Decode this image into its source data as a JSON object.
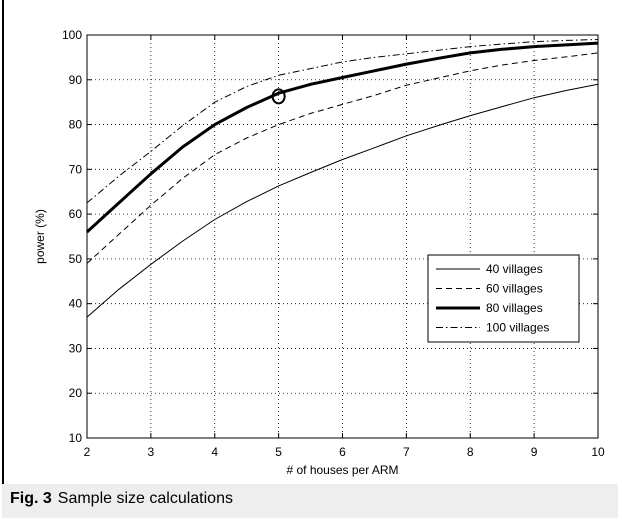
{
  "caption": {
    "label": "Fig. 3",
    "text": "Sample size calculations"
  },
  "chart_data": {
    "type": "line",
    "xlabel": "# of houses per ARM",
    "ylabel": "power (%)",
    "xlim": [
      2,
      10
    ],
    "ylim": [
      10,
      100
    ],
    "xticks": [
      2,
      3,
      4,
      5,
      6,
      7,
      8,
      9,
      10
    ],
    "yticks": [
      10,
      20,
      30,
      40,
      50,
      60,
      70,
      80,
      90,
      100
    ],
    "grid": true,
    "legend_position": "right",
    "x": [
      2,
      2.5,
      3,
      3.5,
      4,
      4.5,
      5,
      5.5,
      6,
      6.5,
      7,
      7.5,
      8,
      8.5,
      9,
      9.5,
      10
    ],
    "series": [
      {
        "name": "40 villages",
        "style": "solid-thin",
        "color": "#000000",
        "values": [
          37,
          43.2,
          48.8,
          54,
          58.8,
          62.8,
          66.3,
          69.3,
          72.2,
          74.8,
          77.5,
          79.8,
          82,
          84,
          86,
          87.6,
          89
        ]
      },
      {
        "name": "60 villages",
        "style": "dashed",
        "color": "#000000",
        "values": [
          49,
          55.5,
          62,
          68,
          73.3,
          77,
          80,
          82.5,
          84.5,
          86.5,
          88.8,
          90.4,
          92,
          93.3,
          94.3,
          95.1,
          96
        ]
      },
      {
        "name": "80 villages",
        "style": "solid-thick",
        "color": "#000000",
        "values": [
          56,
          62.5,
          69,
          75,
          80,
          83.8,
          87,
          89,
          90.5,
          92,
          93.5,
          94.8,
          96,
          96.8,
          97.4,
          97.8,
          98.2
        ]
      },
      {
        "name": "100 villages",
        "style": "dash-dot",
        "color": "#000000",
        "values": [
          62.5,
          68.5,
          74,
          79.8,
          85,
          88.5,
          91,
          92.5,
          94,
          95,
          95.8,
          96.6,
          97.4,
          98,
          98.5,
          98.8,
          99
        ]
      }
    ],
    "annotations": [
      {
        "type": "circle-marker",
        "x": 5,
        "y": 86.3
      }
    ]
  }
}
